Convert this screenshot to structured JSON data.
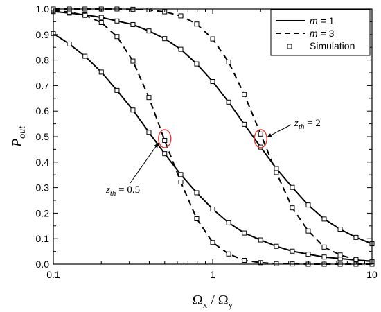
{
  "chart_data": {
    "type": "line",
    "x_scale": "log",
    "xlim": [
      0.1,
      10
    ],
    "ylim": [
      0.0,
      1.0
    ],
    "xlabel": {
      "main": "Ω",
      "sub1": "x",
      "mid": " / Ω",
      "sub2": "y"
    },
    "ylabel": {
      "main": "P",
      "sub": "out"
    },
    "x_ticks": [
      0.1,
      1,
      10
    ],
    "x_tick_labels": [
      "0.1",
      "1",
      "10"
    ],
    "y_ticks": [
      0.0,
      0.1,
      0.2,
      0.3,
      0.4,
      0.5,
      0.6,
      0.7,
      0.8,
      0.9,
      1.0
    ],
    "y_tick_labels": [
      "0.0",
      "0.1",
      "0.2",
      "0.3",
      "0.4",
      "0.5",
      "0.6",
      "0.7",
      "0.8",
      "0.9",
      "1.0"
    ],
    "legend": {
      "position": "top-right",
      "entries": [
        {
          "label_italic": "m",
          "label_rest": " = 1",
          "style": "solid"
        },
        {
          "label_italic": "m",
          "label_rest": " = 3",
          "style": "dashed"
        },
        {
          "label_italic": "",
          "label_rest": "Simulation",
          "style": "square-marker"
        }
      ]
    },
    "series": [
      {
        "style": "solid",
        "legend_entry": 0,
        "x": [
          0.1,
          0.126,
          0.158,
          0.2,
          0.251,
          0.316,
          0.398,
          0.5,
          0.631,
          0.794,
          1.0,
          1.26,
          1.58,
          2.0,
          2.51,
          3.16,
          3.98,
          5.01,
          6.31,
          7.94,
          10.0
        ],
        "y": [
          0.904,
          0.863,
          0.815,
          0.753,
          0.681,
          0.604,
          0.517,
          0.433,
          0.351,
          0.28,
          0.216,
          0.162,
          0.122,
          0.095,
          0.07,
          0.051,
          0.039,
          0.028,
          0.022,
          0.016,
          0.012
        ]
      },
      {
        "style": "solid",
        "legend_entry": 0,
        "x": [
          0.1,
          0.126,
          0.158,
          0.2,
          0.251,
          0.316,
          0.398,
          0.5,
          0.631,
          0.794,
          1.0,
          1.26,
          1.58,
          2.0,
          2.51,
          3.16,
          3.98,
          5.01,
          6.31,
          7.94,
          10.0
        ],
        "y": [
          0.99,
          0.984,
          0.977,
          0.967,
          0.953,
          0.939,
          0.914,
          0.884,
          0.842,
          0.785,
          0.716,
          0.635,
          0.548,
          0.459,
          0.375,
          0.301,
          0.232,
          0.177,
          0.137,
          0.105,
          0.08
        ]
      },
      {
        "style": "dashed",
        "legend_entry": 1,
        "x": [
          0.1,
          0.126,
          0.158,
          0.2,
          0.251,
          0.316,
          0.398,
          0.5,
          0.631,
          0.794,
          1.0,
          1.26,
          1.58,
          2.0,
          2.51,
          3.16,
          3.98,
          5.01,
          6.31,
          7.94,
          10.0
        ],
        "y": [
          0.994,
          0.988,
          0.975,
          0.947,
          0.892,
          0.796,
          0.653,
          0.485,
          0.322,
          0.178,
          0.085,
          0.04,
          0.015,
          0.006,
          0.002,
          0.001,
          0.0,
          0.0,
          0.0,
          0.0,
          0.0
        ]
      },
      {
        "style": "dashed",
        "legend_entry": 1,
        "x": [
          0.1,
          0.126,
          0.158,
          0.2,
          0.251,
          0.316,
          0.398,
          0.5,
          0.631,
          0.794,
          1.0,
          1.26,
          1.58,
          2.0,
          2.51,
          3.16,
          3.98,
          5.01,
          6.31,
          7.94,
          10.0
        ],
        "y": [
          1.0,
          1.0,
          1.0,
          1.0,
          1.0,
          0.999,
          0.996,
          0.989,
          0.973,
          0.941,
          0.883,
          0.792,
          0.665,
          0.51,
          0.359,
          0.221,
          0.13,
          0.067,
          0.036,
          0.018,
          0.01
        ]
      }
    ],
    "simulation_markers": {
      "legend_entry": 2,
      "x": [
        0.1,
        0.126,
        0.158,
        0.2,
        0.251,
        0.316,
        0.398,
        0.5,
        0.631,
        0.794,
        1.0,
        1.26,
        1.58,
        2.0,
        2.51,
        3.16,
        3.98,
        5.01,
        6.31,
        7.94,
        10.0
      ]
    },
    "annotations": [
      {
        "label_main": "z",
        "label_sub": "th",
        "label_rest": " = 0.5",
        "circle_at": [
          0.5,
          0.492
        ]
      },
      {
        "label_main": "z",
        "label_sub": "th",
        "label_rest": " = 2",
        "circle_at": [
          2.0,
          0.492
        ]
      }
    ],
    "colors": {
      "axis": "#000000",
      "line": "#000000",
      "highlight_circle": "#e8332f"
    }
  }
}
